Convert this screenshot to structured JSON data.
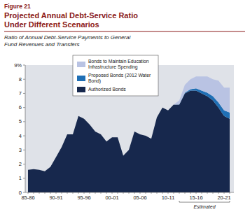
{
  "chart_data": {
    "type": "area",
    "stacked": true,
    "figure_label": "Figure 21",
    "title": "Projected Annual Debt-Service Ratio Under Different Scenarios",
    "subtitle": "Ratio of Annual Debt-Service Payments to General Fund Revenues and Transfers",
    "annotation": "Estimated",
    "categories": [
      "85-86",
      null,
      null,
      null,
      null,
      "90-91",
      null,
      null,
      null,
      null,
      "95-96",
      null,
      null,
      null,
      null,
      "00-01",
      null,
      null,
      null,
      null,
      "05-06",
      null,
      null,
      null,
      null,
      "10-11",
      null,
      null,
      null,
      null,
      "15-16",
      null,
      null,
      null,
      null,
      "20-21",
      null
    ],
    "series": [
      {
        "name": "Authorized Bonds",
        "color": "#17284d",
        "values": [
          1.6,
          1.65,
          1.6,
          1.5,
          1.8,
          2.5,
          3.2,
          4.1,
          4.1,
          5.4,
          5.2,
          4.8,
          4.3,
          4.1,
          3.6,
          3.9,
          3.9,
          2.6,
          3.0,
          4.3,
          4.1,
          4.0,
          3.8,
          5.3,
          6.0,
          5.8,
          6.2,
          6.2,
          7.0,
          7.2,
          7.2,
          7.0,
          6.8,
          6.5,
          6.0,
          5.4,
          5.2
        ]
      },
      {
        "name": "Proposed Bonds (2012 Water Bond)",
        "color": "#1f6fb5",
        "values": [
          0,
          0,
          0,
          0,
          0,
          0,
          0,
          0,
          0,
          0,
          0,
          0,
          0,
          0,
          0,
          0,
          0,
          0,
          0,
          0,
          0,
          0,
          0,
          0,
          0,
          0,
          0,
          0.02,
          0.05,
          0.1,
          0.15,
          0.2,
          0.25,
          0.3,
          0.35,
          0.4,
          0.45
        ]
      },
      {
        "name": "Bonds to Maintain Education Infrastructure Spending",
        "color": "#b9c3e3",
        "values": [
          0,
          0,
          0,
          0,
          0,
          0,
          0,
          0,
          0,
          0,
          0,
          0,
          0,
          0,
          0,
          0,
          0,
          0,
          0,
          0,
          0,
          0,
          0,
          0,
          0,
          0,
          0,
          0.28,
          0.55,
          0.7,
          0.85,
          1.0,
          1.15,
          1.2,
          1.55,
          1.6,
          1.75
        ]
      }
    ],
    "ylim": [
      0,
      9
    ],
    "yticks": [
      0,
      1,
      2,
      3,
      4,
      5,
      6,
      7,
      8,
      {
        "value": 9,
        "label": "9%"
      }
    ],
    "grid": false,
    "legend": "top-left"
  }
}
